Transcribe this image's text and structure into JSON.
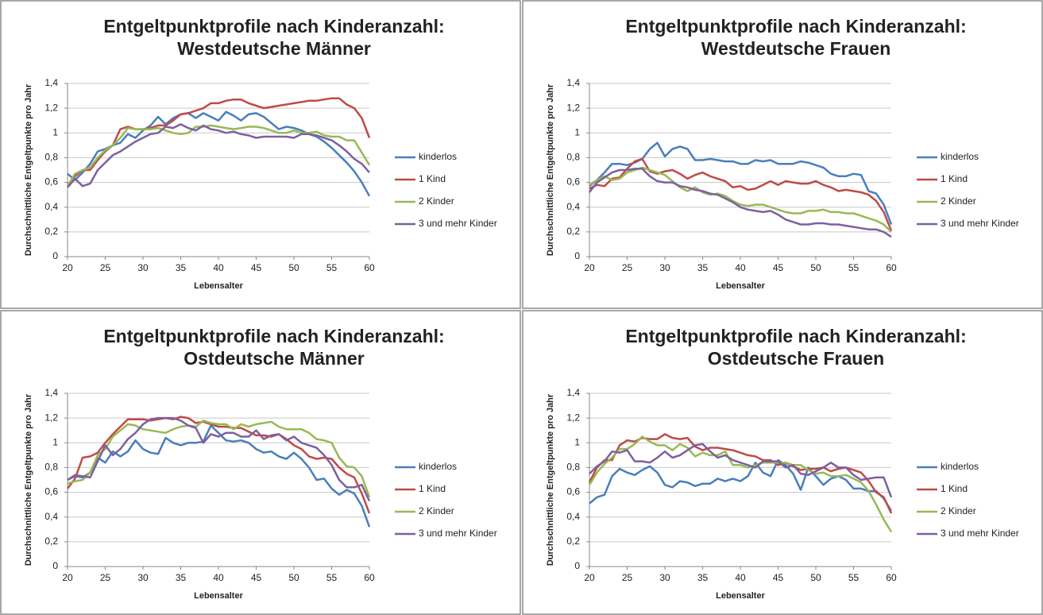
{
  "chart_data": [
    {
      "type": "line",
      "title": "Entgeltpunktprofile nach Kinderanzahl:",
      "subtitle": "Westdeutsche Männer",
      "x_label": "Lebensalter",
      "y_label": "Durchschnittliche Entgeltpunkte pro Jahr",
      "x": [
        20,
        21,
        22,
        23,
        24,
        25,
        26,
        27,
        28,
        29,
        30,
        31,
        32,
        33,
        34,
        35,
        36,
        37,
        38,
        39,
        40,
        41,
        42,
        43,
        44,
        45,
        46,
        47,
        48,
        49,
        50,
        51,
        52,
        53,
        54,
        55,
        56,
        57,
        58,
        59,
        60
      ],
      "xlim": [
        20,
        60
      ],
      "xticks": [
        20,
        25,
        30,
        35,
        40,
        45,
        50,
        55,
        60
      ],
      "ylim": [
        0,
        1.4
      ],
      "yticks": [
        0,
        {
          "value": 0.2,
          "label": "0,2"
        },
        {
          "value": 0.4,
          "label": "0,4"
        },
        {
          "value": 0.6,
          "label": "0,6"
        },
        {
          "value": 0.8,
          "label": "0,8"
        },
        1,
        {
          "value": 1.2,
          "label": "1,2"
        },
        {
          "value": 1.4,
          "label": "1,4"
        }
      ],
      "grid": true,
      "legend": "right",
      "series": [
        {
          "name": "kinderlos",
          "color": "#4a7ebb",
          "values": [
            0.67,
            0.62,
            0.68,
            0.75,
            0.85,
            0.87,
            0.9,
            0.92,
            0.99,
            0.96,
            1.02,
            1.06,
            1.13,
            1.07,
            1.12,
            1.15,
            1.16,
            1.12,
            1.16,
            1.13,
            1.1,
            1.17,
            1.14,
            1.1,
            1.15,
            1.16,
            1.13,
            1.08,
            1.03,
            1.05,
            1.04,
            1.02,
            0.99,
            0.97,
            0.93,
            0.88,
            0.82,
            0.76,
            0.69,
            0.6,
            0.49
          ]
        },
        {
          "name": "1 Kind",
          "color": "#be4b48",
          "values": [
            0.58,
            0.65,
            0.7,
            0.7,
            0.78,
            0.85,
            0.9,
            1.03,
            1.05,
            1.03,
            1.03,
            1.04,
            1.06,
            1.06,
            1.1,
            1.15,
            1.16,
            1.18,
            1.2,
            1.24,
            1.24,
            1.26,
            1.27,
            1.27,
            1.24,
            1.22,
            1.2,
            1.21,
            1.22,
            1.23,
            1.24,
            1.25,
            1.26,
            1.26,
            1.27,
            1.28,
            1.28,
            1.23,
            1.2,
            1.12,
            0.96
          ]
        },
        {
          "name": "2 Kinder",
          "color": "#98b954",
          "values": [
            0.57,
            0.67,
            0.7,
            0.72,
            0.8,
            0.86,
            0.9,
            0.96,
            1.04,
            1.03,
            1.03,
            1.03,
            1.04,
            1.02,
            1.0,
            0.99,
            1.0,
            1.05,
            1.05,
            1.06,
            1.05,
            1.04,
            1.03,
            1.04,
            1.05,
            1.05,
            1.04,
            1.02,
            1.0,
            1.0,
            1.02,
            1.0,
            1.0,
            1.01,
            0.98,
            0.97,
            0.97,
            0.94,
            0.94,
            0.84,
            0.74
          ]
        },
        {
          "name": "3 und mehr Kinder",
          "color": "#7d60a0",
          "values": [
            0.56,
            0.63,
            0.57,
            0.59,
            0.7,
            0.76,
            0.82,
            0.85,
            0.89,
            0.93,
            0.96,
            0.99,
            1.0,
            1.05,
            1.04,
            1.07,
            1.04,
            1.02,
            1.06,
            1.03,
            1.02,
            1.0,
            1.01,
            0.99,
            0.98,
            0.96,
            0.97,
            0.97,
            0.97,
            0.97,
            0.96,
            0.99,
            0.99,
            0.98,
            0.96,
            0.94,
            0.9,
            0.85,
            0.79,
            0.75,
            0.68
          ]
        }
      ]
    },
    {
      "type": "line",
      "title": "Entgeltpunktprofile nach Kinderanzahl:",
      "subtitle": "Westdeutsche Frauen",
      "x_label": "Lebensalter",
      "y_label": "Durchschnittliche Entgeltpunkte pro Jahr",
      "x": [
        20,
        21,
        22,
        23,
        24,
        25,
        26,
        27,
        28,
        29,
        30,
        31,
        32,
        33,
        34,
        35,
        36,
        37,
        38,
        39,
        40,
        41,
        42,
        43,
        44,
        45,
        46,
        47,
        48,
        49,
        50,
        51,
        52,
        53,
        54,
        55,
        56,
        57,
        58,
        59,
        60
      ],
      "xlim": [
        20,
        60
      ],
      "xticks": [
        20,
        25,
        30,
        35,
        40,
        45,
        50,
        55,
        60
      ],
      "ylim": [
        0,
        1.4
      ],
      "yticks": [
        0,
        {
          "value": 0.2,
          "label": "0,2"
        },
        {
          "value": 0.4,
          "label": "0,4"
        },
        {
          "value": 0.6,
          "label": "0,6"
        },
        {
          "value": 0.8,
          "label": "0,8"
        },
        1,
        {
          "value": 1.2,
          "label": "1,2"
        },
        {
          "value": 1.4,
          "label": "1,4"
        }
      ],
      "grid": true,
      "legend": "right",
      "series": [
        {
          "name": "kinderlos",
          "color": "#4a7ebb",
          "values": [
            0.57,
            0.62,
            0.68,
            0.75,
            0.75,
            0.74,
            0.76,
            0.79,
            0.87,
            0.92,
            0.81,
            0.87,
            0.89,
            0.87,
            0.78,
            0.78,
            0.79,
            0.78,
            0.77,
            0.77,
            0.75,
            0.75,
            0.78,
            0.77,
            0.78,
            0.75,
            0.75,
            0.75,
            0.77,
            0.76,
            0.74,
            0.72,
            0.67,
            0.65,
            0.65,
            0.67,
            0.66,
            0.53,
            0.51,
            0.42,
            0.26
          ]
        },
        {
          "name": "1 Kind",
          "color": "#be4b48",
          "values": [
            0.55,
            0.58,
            0.57,
            0.63,
            0.64,
            0.71,
            0.77,
            0.79,
            0.69,
            0.67,
            0.69,
            0.7,
            0.67,
            0.63,
            0.66,
            0.68,
            0.65,
            0.63,
            0.61,
            0.56,
            0.57,
            0.54,
            0.55,
            0.58,
            0.61,
            0.58,
            0.61,
            0.6,
            0.59,
            0.59,
            0.61,
            0.58,
            0.56,
            0.53,
            0.54,
            0.53,
            0.52,
            0.5,
            0.45,
            0.36,
            0.21
          ]
        },
        {
          "name": "2 Kinder",
          "color": "#98b954",
          "values": [
            0.58,
            0.62,
            0.65,
            0.62,
            0.63,
            0.68,
            0.7,
            0.72,
            0.7,
            0.68,
            0.66,
            0.61,
            0.56,
            0.53,
            0.56,
            0.52,
            0.5,
            0.51,
            0.49,
            0.45,
            0.42,
            0.41,
            0.42,
            0.42,
            0.4,
            0.38,
            0.36,
            0.35,
            0.35,
            0.37,
            0.37,
            0.38,
            0.36,
            0.36,
            0.35,
            0.35,
            0.33,
            0.31,
            0.29,
            0.26,
            0.2
          ]
        },
        {
          "name": "3 und mehr Kinder",
          "color": "#7d60a0",
          "values": [
            0.52,
            0.6,
            0.64,
            0.68,
            0.7,
            0.7,
            0.71,
            0.71,
            0.65,
            0.61,
            0.6,
            0.6,
            0.57,
            0.56,
            0.54,
            0.53,
            0.51,
            0.5,
            0.47,
            0.44,
            0.4,
            0.38,
            0.37,
            0.36,
            0.37,
            0.34,
            0.3,
            0.28,
            0.26,
            0.26,
            0.27,
            0.27,
            0.26,
            0.26,
            0.25,
            0.24,
            0.23,
            0.22,
            0.22,
            0.2,
            0.16
          ]
        }
      ]
    },
    {
      "type": "line",
      "title": "Entgeltpunktprofile nach Kinderanzahl:",
      "subtitle": "Ostdeutsche Männer",
      "x_label": "Lebensalter",
      "y_label": "Durchschnittliche Entgeltpunkte pro Jahr",
      "x": [
        20,
        21,
        22,
        23,
        24,
        25,
        26,
        27,
        28,
        29,
        30,
        31,
        32,
        33,
        34,
        35,
        36,
        37,
        38,
        39,
        40,
        41,
        42,
        43,
        44,
        45,
        46,
        47,
        48,
        49,
        50,
        51,
        52,
        53,
        54,
        55,
        56,
        57,
        58,
        59,
        60
      ],
      "xlim": [
        20,
        60
      ],
      "xticks": [
        20,
        25,
        30,
        35,
        40,
        45,
        50,
        55,
        60
      ],
      "ylim": [
        0,
        1.4
      ],
      "yticks": [
        0,
        {
          "value": 0.2,
          "label": "0,2"
        },
        {
          "value": 0.4,
          "label": "0,4"
        },
        {
          "value": 0.6,
          "label": "0,6"
        },
        {
          "value": 0.8,
          "label": "0,8"
        },
        1,
        {
          "value": 1.2,
          "label": "1,2"
        },
        {
          "value": 1.4,
          "label": "1,4"
        }
      ],
      "grid": true,
      "legend": "right",
      "series": [
        {
          "name": "kinderlos",
          "color": "#4a7ebb",
          "values": [
            0.7,
            0.73,
            0.72,
            0.76,
            0.88,
            0.84,
            0.93,
            0.89,
            0.93,
            1.02,
            0.95,
            0.92,
            0.91,
            1.04,
            1.0,
            0.98,
            1.0,
            1.0,
            1.01,
            1.14,
            1.08,
            1.02,
            1.01,
            1.02,
            1.0,
            0.95,
            0.92,
            0.93,
            0.89,
            0.87,
            0.92,
            0.87,
            0.8,
            0.7,
            0.71,
            0.63,
            0.58,
            0.62,
            0.59,
            0.49,
            0.32
          ]
        },
        {
          "name": "1 Kind",
          "color": "#be4b48",
          "values": [
            0.63,
            0.71,
            0.88,
            0.89,
            0.92,
            1.0,
            1.07,
            1.13,
            1.19,
            1.19,
            1.19,
            1.18,
            1.19,
            1.2,
            1.19,
            1.21,
            1.2,
            1.16,
            1.17,
            1.15,
            1.13,
            1.13,
            1.12,
            1.12,
            1.09,
            1.06,
            1.06,
            1.05,
            1.07,
            1.03,
            0.98,
            0.95,
            0.89,
            0.87,
            0.88,
            0.87,
            0.8,
            0.75,
            0.72,
            0.59,
            0.43
          ]
        },
        {
          "name": "2 Kinder",
          "color": "#98b954",
          "values": [
            0.67,
            0.69,
            0.7,
            0.76,
            0.9,
            0.95,
            1.05,
            1.1,
            1.15,
            1.14,
            1.11,
            1.1,
            1.09,
            1.08,
            1.11,
            1.13,
            1.14,
            1.13,
            1.18,
            1.16,
            1.15,
            1.15,
            1.11,
            1.15,
            1.13,
            1.15,
            1.16,
            1.17,
            1.13,
            1.11,
            1.11,
            1.11,
            1.08,
            1.03,
            1.02,
            1.0,
            0.88,
            0.81,
            0.8,
            0.73,
            0.56
          ]
        },
        {
          "name": "3 und mehr Kinder",
          "color": "#7d60a0",
          "values": [
            0.7,
            0.74,
            0.73,
            0.72,
            0.85,
            0.98,
            0.9,
            0.95,
            1.03,
            1.08,
            1.15,
            1.19,
            1.2,
            1.2,
            1.2,
            1.18,
            1.14,
            1.12,
            1.0,
            1.07,
            1.05,
            1.08,
            1.08,
            1.05,
            1.05,
            1.1,
            1.03,
            1.06,
            1.07,
            1.02,
            1.05,
            1.0,
            0.98,
            0.96,
            0.9,
            0.82,
            0.7,
            0.64,
            0.64,
            0.66,
            0.53
          ]
        }
      ]
    },
    {
      "type": "line",
      "title": "Entgeltpunktprofile nach Kinderanzahl:",
      "subtitle": "Ostdeutsche Frauen",
      "x_label": "Lebensalter",
      "y_label": "Durchschnittliche Entgeltpunkte pro Jahr",
      "x": [
        20,
        21,
        22,
        23,
        24,
        25,
        26,
        27,
        28,
        29,
        30,
        31,
        32,
        33,
        34,
        35,
        36,
        37,
        38,
        39,
        40,
        41,
        42,
        43,
        44,
        45,
        46,
        47,
        48,
        49,
        50,
        51,
        52,
        53,
        54,
        55,
        56,
        57,
        58,
        59,
        60
      ],
      "xlim": [
        20,
        60
      ],
      "xticks": [
        20,
        25,
        30,
        35,
        40,
        45,
        50,
        55,
        60
      ],
      "ylim": [
        0,
        1.4
      ],
      "yticks": [
        0,
        {
          "value": 0.2,
          "label": "0,2"
        },
        {
          "value": 0.4,
          "label": "0,4"
        },
        {
          "value": 0.6,
          "label": "0,6"
        },
        {
          "value": 0.8,
          "label": "0,8"
        },
        1,
        {
          "value": 1.2,
          "label": "1,2"
        },
        {
          "value": 1.4,
          "label": "1,4"
        }
      ],
      "grid": true,
      "legend": "right",
      "series": [
        {
          "name": "kinderlos",
          "color": "#4a7ebb",
          "values": [
            0.51,
            0.56,
            0.58,
            0.73,
            0.79,
            0.76,
            0.74,
            0.78,
            0.81,
            0.76,
            0.66,
            0.64,
            0.69,
            0.68,
            0.65,
            0.67,
            0.67,
            0.71,
            0.69,
            0.71,
            0.69,
            0.73,
            0.84,
            0.76,
            0.73,
            0.86,
            0.82,
            0.75,
            0.62,
            0.8,
            0.73,
            0.66,
            0.71,
            0.73,
            0.7,
            0.63,
            0.63,
            0.61,
            0.61,
            0.55,
            0.45
          ]
        },
        {
          "name": "1 Kind",
          "color": "#be4b48",
          "values": [
            0.68,
            0.8,
            0.86,
            0.86,
            0.98,
            1.02,
            1.01,
            1.04,
            1.03,
            1.03,
            1.07,
            1.04,
            1.03,
            1.04,
            0.97,
            0.94,
            0.96,
            0.96,
            0.95,
            0.94,
            0.92,
            0.9,
            0.89,
            0.86,
            0.86,
            0.82,
            0.84,
            0.81,
            0.78,
            0.79,
            0.79,
            0.8,
            0.77,
            0.79,
            0.8,
            0.78,
            0.76,
            0.69,
            0.6,
            0.56,
            0.43
          ]
        },
        {
          "name": "2 Kinder",
          "color": "#98b954",
          "values": [
            0.66,
            0.76,
            0.83,
            0.88,
            0.95,
            0.95,
            0.99,
            1.05,
            1.01,
            0.98,
            0.98,
            0.94,
            0.99,
            0.96,
            0.89,
            0.92,
            0.9,
            0.9,
            0.93,
            0.82,
            0.82,
            0.8,
            0.82,
            0.84,
            0.84,
            0.84,
            0.84,
            0.82,
            0.82,
            0.78,
            0.75,
            0.76,
            0.73,
            0.73,
            0.74,
            0.71,
            0.68,
            0.61,
            0.5,
            0.38,
            0.28
          ]
        },
        {
          "name": "3 und mehr Kinder",
          "color": "#7d60a0",
          "values": [
            0.75,
            0.81,
            0.85,
            0.93,
            0.92,
            0.94,
            0.85,
            0.85,
            0.84,
            0.88,
            0.93,
            0.88,
            0.9,
            0.94,
            0.98,
            0.99,
            0.93,
            0.88,
            0.9,
            0.86,
            0.84,
            0.82,
            0.8,
            0.85,
            0.85,
            0.85,
            0.8,
            0.82,
            0.75,
            0.74,
            0.77,
            0.8,
            0.84,
            0.8,
            0.8,
            0.74,
            0.7,
            0.71,
            0.72,
            0.72,
            0.56
          ]
        }
      ]
    }
  ]
}
